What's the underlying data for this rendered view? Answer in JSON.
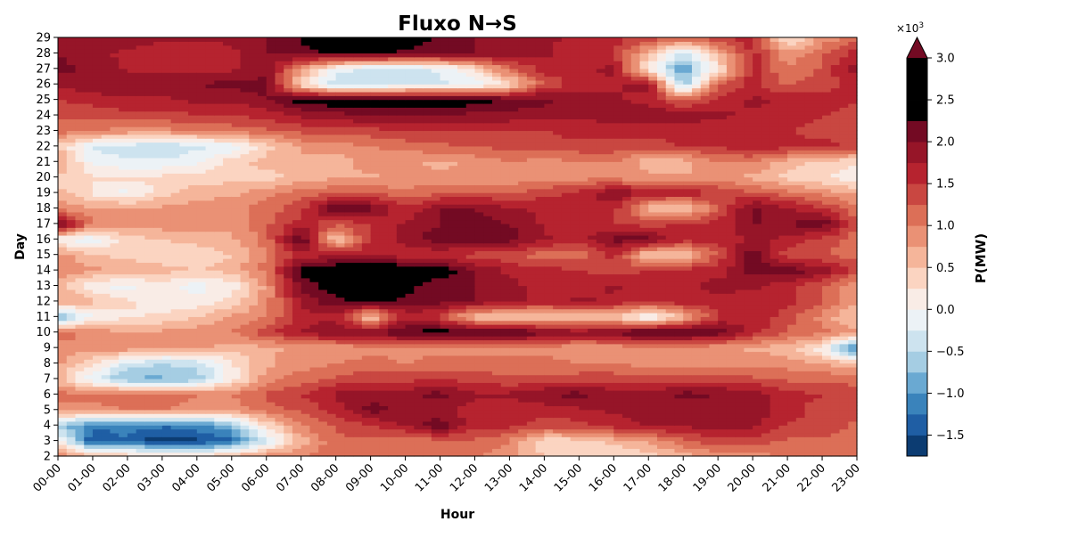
{
  "chart_data": {
    "type": "heatmap",
    "title": "Fluxo N→S",
    "xlabel": "Hour",
    "ylabel": "Day",
    "x_ticks": [
      "00-00",
      "01-00",
      "02-00",
      "03-00",
      "04-00",
      "05-00",
      "06-00",
      "07-00",
      "08-00",
      "09-00",
      "10-00",
      "11-00",
      "12-00",
      "13-00",
      "14-00",
      "15-00",
      "16-00",
      "17-00",
      "18-00",
      "19-00",
      "20-00",
      "21-00",
      "22-00",
      "23-00"
    ],
    "y_ticks": [
      "2",
      "3",
      "4",
      "5",
      "6",
      "7",
      "8",
      "9",
      "10",
      "11",
      "12",
      "13",
      "14",
      "15",
      "16",
      "17",
      "18",
      "19",
      "20",
      "21",
      "22",
      "23",
      "24",
      "25",
      "26",
      "27",
      "28",
      "29"
    ],
    "colorbar": {
      "label": "P(MW)",
      "multiplier": "×10",
      "multiplier_exp": "3",
      "tick_labels": [
        "−1.5",
        "−1.0",
        "−0.5",
        "0.0",
        "0.5",
        "1.0",
        "1.5",
        "2.0",
        "2.5",
        "3.0"
      ],
      "tick_values": [
        -1.5,
        -1.0,
        -0.5,
        0.0,
        0.5,
        1.0,
        1.5,
        2.0,
        2.5,
        3.0
      ],
      "levels": [
        -1.75,
        -1.5,
        -1.25,
        -1.0,
        -0.75,
        -0.5,
        -0.25,
        0.0,
        0.25,
        0.5,
        0.75,
        1.0,
        1.25,
        1.5,
        1.75,
        2.0,
        2.25,
        2.5,
        2.75,
        3.0
      ],
      "extend": "max",
      "colors": [
        "#0c3c72",
        "#1f5ea4",
        "#3a83bb",
        "#6aa9d2",
        "#a5cde3",
        "#cde3ef",
        "#ecf2f6",
        "#f9ece6",
        "#fbd4c1",
        "#f5b59a",
        "#ea9175",
        "#dc6f57",
        "#c94741",
        "#b6232f",
        "#961528",
        "#730a23"
      ]
    },
    "z_units": "×10^3 MW",
    "z": [
      [
        1.0,
        0.7,
        0.5,
        0.3,
        0.4,
        0.6,
        0.9,
        1.0,
        1.1,
        1.2,
        1.2,
        1.1,
        1.0,
        0.8,
        0.5,
        0.3,
        0.2,
        0.4,
        0.6,
        0.8,
        0.9,
        1.0,
        1.1,
        1.2
      ],
      [
        0.2,
        -1.5,
        -1.3,
        -1.7,
        -1.6,
        -1.3,
        -0.3,
        0.6,
        1.2,
        1.2,
        1.0,
        1.2,
        1.2,
        1.0,
        0.3,
        0.4,
        0.6,
        0.8,
        1.2,
        1.4,
        1.4,
        1.2,
        1.2,
        1.1
      ],
      [
        -0.6,
        -1.2,
        -1.1,
        -1.2,
        -1.1,
        -0.8,
        0.3,
        1.0,
        1.3,
        1.5,
        1.8,
        2.2,
        1.6,
        1.6,
        1.4,
        1.4,
        1.6,
        1.8,
        1.8,
        1.9,
        1.8,
        1.5,
        1.4,
        1.2
      ],
      [
        0.9,
        0.9,
        1.0,
        1.0,
        0.9,
        0.9,
        1.1,
        1.3,
        1.6,
        2.1,
        1.9,
        1.8,
        1.6,
        1.6,
        1.6,
        1.7,
        1.8,
        1.8,
        1.8,
        1.9,
        1.9,
        1.6,
        1.4,
        1.3
      ],
      [
        1.1,
        1.1,
        1.2,
        1.1,
        1.0,
        1.0,
        1.3,
        1.5,
        1.8,
        1.9,
        1.9,
        2.1,
        1.8,
        1.8,
        2.0,
        2.1,
        1.9,
        1.8,
        2.1,
        2.0,
        1.9,
        1.6,
        1.5,
        1.4
      ],
      [
        0.6,
        -0.2,
        -0.8,
        -0.8,
        -0.7,
        0.1,
        0.9,
        1.1,
        1.3,
        1.4,
        1.4,
        1.5,
        1.4,
        1.3,
        1.3,
        1.4,
        1.4,
        1.3,
        1.4,
        1.4,
        1.3,
        1.2,
        1.2,
        1.1
      ],
      [
        0.8,
        0.3,
        -0.3,
        -0.5,
        -0.4,
        0.2,
        0.7,
        0.9,
        1.0,
        1.1,
        1.0,
        1.1,
        1.1,
        1.1,
        1.1,
        1.0,
        1.0,
        0.9,
        0.9,
        0.9,
        0.9,
        0.9,
        0.7,
        0.6
      ],
      [
        0.9,
        0.9,
        0.9,
        0.8,
        0.8,
        0.6,
        0.7,
        0.8,
        0.8,
        0.9,
        0.9,
        0.9,
        0.9,
        0.9,
        0.9,
        0.8,
        0.8,
        0.9,
        0.9,
        0.8,
        0.7,
        0.6,
        0.1,
        -1.4
      ],
      [
        1.2,
        0.9,
        0.8,
        0.8,
        0.9,
        1.0,
        1.4,
        1.8,
        2.0,
        2.0,
        2.3,
        2.4,
        2.3,
        2.4,
        2.1,
        1.9,
        2.1,
        2.4,
        2.3,
        2.2,
        1.6,
        1.2,
        1.1,
        0.8
      ],
      [
        -0.9,
        0.0,
        0.2,
        0.3,
        0.5,
        0.8,
        1.0,
        1.6,
        1.7,
        0.4,
        1.6,
        1.4,
        0.5,
        0.4,
        0.4,
        0.5,
        0.5,
        -0.2,
        0.6,
        1.5,
        1.7,
        1.4,
        0.9,
        0.4
      ],
      [
        0.8,
        0.6,
        0.3,
        0.1,
        0.1,
        0.3,
        0.9,
        1.8,
        2.2,
        2.4,
        2.2,
        2.1,
        2.0,
        1.8,
        1.7,
        1.8,
        1.7,
        1.5,
        1.7,
        1.6,
        1.6,
        1.6,
        1.3,
        0.8
      ],
      [
        0.6,
        0.0,
        -0.1,
        0.1,
        -0.1,
        0.1,
        0.8,
        2.1,
        2.4,
        2.5,
        2.4,
        2.0,
        2.0,
        1.8,
        1.7,
        1.6,
        1.8,
        1.7,
        1.6,
        1.9,
        1.8,
        1.6,
        1.3,
        0.8
      ],
      [
        0.9,
        0.8,
        0.7,
        0.6,
        0.5,
        0.6,
        1.1,
        2.4,
        2.6,
        2.9,
        2.5,
        2.5,
        2.0,
        1.7,
        1.6,
        1.5,
        1.4,
        1.5,
        1.6,
        1.6,
        2.1,
        2.2,
        1.9,
        1.4
      ],
      [
        0.9,
        0.5,
        0.4,
        0.3,
        0.3,
        0.5,
        1.0,
        1.6,
        1.7,
        1.7,
        1.6,
        1.5,
        1.4,
        1.3,
        1.1,
        1.1,
        1.6,
        0.4,
        0.5,
        1.3,
        2.2,
        1.3,
        1.3,
        1.1
      ],
      [
        0.0,
        -0.2,
        0.4,
        0.5,
        0.6,
        0.7,
        1.1,
        2.3,
        0.4,
        1.6,
        1.8,
        2.2,
        2.1,
        2.1,
        1.8,
        1.6,
        2.1,
        2.1,
        1.6,
        1.6,
        1.8,
        1.7,
        1.4,
        1.1
      ],
      [
        2.2,
        1.0,
        0.9,
        0.9,
        1.0,
        0.8,
        1.2,
        1.6,
        1.3,
        1.5,
        1.8,
        2.0,
        2.1,
        2.0,
        1.7,
        1.6,
        1.5,
        1.4,
        1.5,
        1.6,
        2.0,
        2.0,
        2.2,
        1.3
      ],
      [
        0.9,
        0.8,
        0.8,
        0.8,
        0.9,
        0.9,
        1.1,
        1.4,
        2.4,
        2.1,
        1.5,
        2.0,
        2.0,
        1.8,
        1.7,
        1.6,
        1.6,
        0.6,
        0.4,
        1.2,
        2.1,
        1.8,
        1.5,
        1.1
      ],
      [
        0.6,
        0.2,
        -0.1,
        0.4,
        0.6,
        0.7,
        0.9,
        1.1,
        1.2,
        1.2,
        1.1,
        1.2,
        1.3,
        1.2,
        1.4,
        1.6,
        2.0,
        1.7,
        1.7,
        1.5,
        1.3,
        1.1,
        0.9,
        0.7
      ],
      [
        0.4,
        0.3,
        0.3,
        0.3,
        0.4,
        0.4,
        0.4,
        0.6,
        0.7,
        0.7,
        0.8,
        0.8,
        0.8,
        0.8,
        0.9,
        0.9,
        0.9,
        0.8,
        0.8,
        0.8,
        0.7,
        0.4,
        0.3,
        0.0
      ],
      [
        0.8,
        -0.1,
        -0.2,
        -0.2,
        -0.1,
        0.4,
        0.6,
        0.7,
        0.6,
        0.9,
        0.8,
        0.7,
        0.8,
        1.0,
        0.9,
        1.0,
        1.0,
        0.6,
        0.6,
        1.0,
        1.0,
        0.6,
        0.4,
        0.3
      ],
      [
        0.5,
        -0.3,
        -0.4,
        -0.5,
        -0.3,
        -0.2,
        0.4,
        0.8,
        0.9,
        1.0,
        1.1,
        1.2,
        1.3,
        1.3,
        1.4,
        1.4,
        1.4,
        1.4,
        1.5,
        1.5,
        1.7,
        1.6,
        1.6,
        1.4
      ],
      [
        1.1,
        1.0,
        0.9,
        0.9,
        1.0,
        1.1,
        1.2,
        1.3,
        1.4,
        1.4,
        1.5,
        1.5,
        1.5,
        1.5,
        1.5,
        1.6,
        1.6,
        1.6,
        1.6,
        1.6,
        1.6,
        1.5,
        1.4,
        1.3
      ],
      [
        1.3,
        1.3,
        1.4,
        1.4,
        1.5,
        1.5,
        1.6,
        1.8,
        1.9,
        2.0,
        2.0,
        2.0,
        1.9,
        1.9,
        1.8,
        1.8,
        1.9,
        2.0,
        1.9,
        1.8,
        1.7,
        1.6,
        1.5,
        1.4
      ],
      [
        1.5,
        1.6,
        1.7,
        1.7,
        1.8,
        1.8,
        2.0,
        2.4,
        2.5,
        2.5,
        2.5,
        2.5,
        2.4,
        2.2,
        2.1,
        1.9,
        1.8,
        1.6,
        1.2,
        1.6,
        1.8,
        1.7,
        1.6,
        1.5
      ],
      [
        1.8,
        1.9,
        2.0,
        2.0,
        2.0,
        2.1,
        2.1,
        0.3,
        -0.5,
        -0.4,
        -0.3,
        -0.3,
        -0.2,
        0.3,
        1.3,
        1.6,
        1.7,
        1.9,
        -0.7,
        1.2,
        1.6,
        1.2,
        1.4,
        1.6
      ],
      [
        2.1,
        1.9,
        1.7,
        1.6,
        1.6,
        1.7,
        1.9,
        0.9,
        -0.1,
        -0.4,
        -0.4,
        -0.2,
        0.3,
        1.2,
        1.6,
        1.7,
        1.8,
        0.1,
        -1.0,
        0.2,
        1.6,
        1.0,
        1.3,
        1.9
      ],
      [
        2.0,
        1.8,
        1.7,
        1.6,
        1.6,
        1.7,
        2.0,
        2.1,
        2.3,
        2.3,
        2.2,
        2.1,
        2.0,
        1.9,
        1.8,
        1.6,
        1.5,
        0.6,
        -0.4,
        0.6,
        1.6,
        0.8,
        1.2,
        1.6
      ],
      [
        2.0,
        1.9,
        1.9,
        1.8,
        1.8,
        1.8,
        2.0,
        2.3,
        2.5,
        2.5,
        2.4,
        2.2,
        2.0,
        1.9,
        1.8,
        1.7,
        1.6,
        1.4,
        1.2,
        1.5,
        1.6,
        0.1,
        0.8,
        1.2
      ]
    ]
  }
}
